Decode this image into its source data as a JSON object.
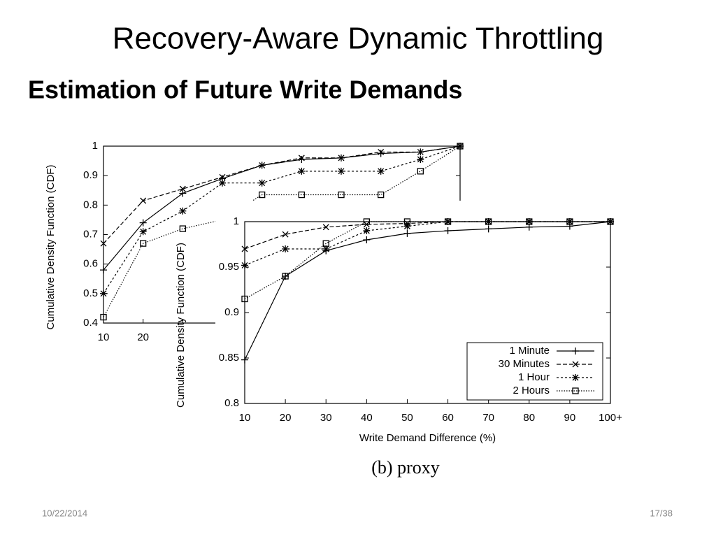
{
  "slide": {
    "title": "Recovery-Aware Dynamic Throttling",
    "subtitle": "Estimation of Future Write Demands",
    "caption": "(b) proxy",
    "date": "10/22/2014",
    "page": "17/38"
  },
  "chart_data": [
    {
      "type": "line",
      "x_label": null,
      "y_label": "Cumulative Density Function (CDF)",
      "categories": [
        "10",
        "20",
        null,
        null,
        null,
        null,
        null,
        null,
        null,
        null
      ],
      "ylim": [
        0.4,
        1
      ],
      "yticks": [
        0.4,
        0.5,
        0.6,
        0.7,
        0.8,
        0.9,
        1
      ],
      "series": [
        {
          "color": "#000000",
          "marker": "plus",
          "line_style": "solid",
          "values": [
            0.58,
            0.74,
            0.84,
            0.89,
            0.935,
            0.955,
            0.96,
            0.975,
            0.98,
            1
          ]
        },
        {
          "color": "#000000",
          "marker": "cross",
          "line_style": "dashed",
          "values": [
            0.67,
            0.815,
            0.855,
            0.895,
            0.935,
            0.96,
            0.96,
            0.98,
            0.98,
            1
          ]
        },
        {
          "color": "#000000",
          "marker": "star",
          "line_style": "dash-dot",
          "values": [
            0.5,
            0.71,
            0.78,
            0.875,
            0.875,
            0.915,
            0.915,
            0.915,
            0.955,
            1
          ]
        },
        {
          "color": "#000000",
          "marker": "square",
          "line_style": "dotted",
          "values": [
            0.42,
            0.67,
            0.72,
            0.75,
            0.835,
            0.835,
            0.835,
            0.835,
            0.915,
            1
          ]
        }
      ]
    },
    {
      "type": "line",
      "x_label": "Write Demand Difference (%)",
      "y_label": "Cumulative Density Function (CDF)",
      "categories": [
        "10",
        "20",
        "30",
        "40",
        "50",
        "60",
        "70",
        "80",
        "90",
        "100+"
      ],
      "ylim": [
        0.8,
        1
      ],
      "yticks": [
        0.8,
        0.85,
        0.9,
        0.95,
        1
      ],
      "legend": "lower-right",
      "series": [
        {
          "name": "1 Minute",
          "color": "#000000",
          "marker": "plus",
          "line_style": "solid",
          "values": [
            0.848,
            0.94,
            0.968,
            0.98,
            0.987,
            0.99,
            0.992,
            0.994,
            0.995,
            1
          ]
        },
        {
          "name": "30 Minutes",
          "color": "#000000",
          "marker": "cross",
          "line_style": "dashed",
          "values": [
            0.97,
            0.986,
            0.994,
            0.997,
            0.998,
            1,
            1,
            1,
            1,
            1
          ]
        },
        {
          "name": "1 Hour",
          "color": "#000000",
          "marker": "star",
          "line_style": "dash-dot",
          "values": [
            0.952,
            0.97,
            0.97,
            0.99,
            0.995,
            1,
            1,
            1,
            1,
            1
          ]
        },
        {
          "name": "2 Hours",
          "color": "#000000",
          "marker": "square",
          "line_style": "dotted",
          "values": [
            0.915,
            0.94,
            0.976,
            1,
            1,
            1,
            1,
            1,
            1,
            1
          ]
        }
      ]
    }
  ]
}
